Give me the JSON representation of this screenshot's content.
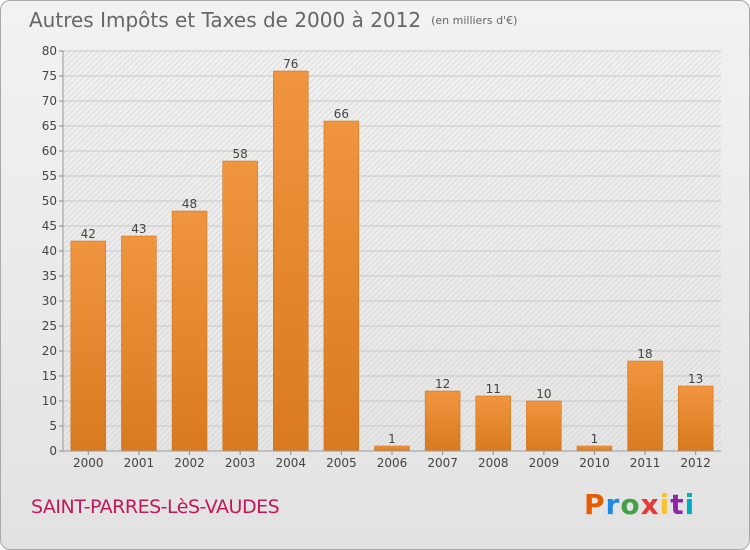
{
  "header": {
    "title": "Autres Impôts et Taxes de 2000 à 2012",
    "subtitle": "(en milliers d'€)"
  },
  "footer": {
    "place": "SAINT-PARRES-LèS-VAUDES",
    "logo": [
      "P",
      "r",
      "o",
      "x",
      "i",
      "t",
      "i"
    ],
    "logo_colors": [
      "#e65c00",
      "#1e88e5",
      "#43a047",
      "#e53935",
      "#fbc02d",
      "#8e24aa",
      "#00acc1"
    ]
  },
  "chart_data": {
    "type": "bar",
    "title": "Autres Impôts et Taxes de 2000 à 2012",
    "subtitle": "(en milliers d'€)",
    "categories": [
      "2000",
      "2001",
      "2002",
      "2003",
      "2004",
      "2005",
      "2006",
      "2007",
      "2008",
      "2009",
      "2010",
      "2011",
      "2012"
    ],
    "values": [
      42,
      43,
      48,
      58,
      76,
      66,
      1,
      12,
      11,
      10,
      1,
      18,
      13
    ],
    "ylim": [
      0,
      80
    ],
    "yticks": [
      0,
      5,
      10,
      15,
      20,
      25,
      30,
      35,
      40,
      45,
      50,
      55,
      60,
      65,
      70,
      75,
      80
    ],
    "grid": true,
    "bar_color": "#f0953f",
    "bar_color_dark": "#d97a1f"
  }
}
